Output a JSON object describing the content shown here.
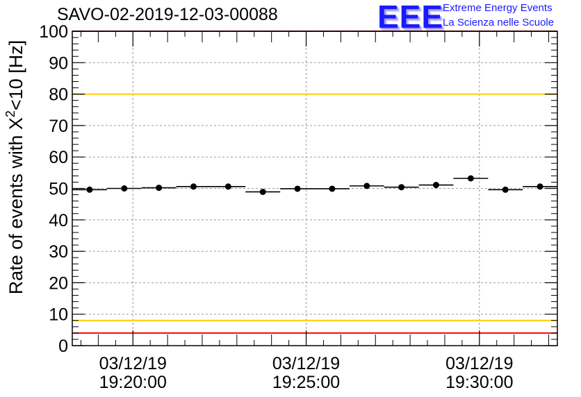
{
  "chart_data": {
    "type": "scatter",
    "title": "SAVO-02-2019-12-03-00088",
    "ylabel_prefix": "Rate of events with X",
    "ylabel_sup": "2",
    "ylabel_suffix": "<10 [Hz]",
    "xlabel": "",
    "ylim": [
      0,
      100
    ],
    "yticks": [
      "0",
      "10",
      "20",
      "30",
      "40",
      "50",
      "60",
      "70",
      "80",
      "90",
      "100"
    ],
    "xticks": [
      {
        "t": 0.0,
        "date": "03/12/19",
        "time": "19:20:00"
      },
      {
        "t": 5.0,
        "date": "03/12/19",
        "time": "19:25:00"
      },
      {
        "t": 10.0,
        "date": "03/12/19",
        "time": "19:30:00"
      }
    ],
    "xlim_minutes_from_1920": [
      -1.75,
      12.25
    ],
    "x_minutes_from_1920": [
      -1.25,
      -0.25,
      0.75,
      1.75,
      2.75,
      3.75,
      4.75,
      5.75,
      6.75,
      7.75,
      8.75,
      9.75,
      10.75,
      11.75
    ],
    "y": [
      49.6,
      50.0,
      50.2,
      50.6,
      50.6,
      48.9,
      49.9,
      49.9,
      50.8,
      50.4,
      51.1,
      53.2,
      49.6,
      50.6
    ],
    "bin_halfwidth_minutes": 0.5,
    "reference_lines": [
      {
        "y": 100,
        "color": "#ff0000"
      },
      {
        "y": 80,
        "color": "#ffcc00"
      },
      {
        "y": 8,
        "color": "#ffcc00"
      },
      {
        "y": 4,
        "color": "#ff0000"
      }
    ],
    "grid": true
  },
  "logo": {
    "text": "EEE",
    "line1": "Extreme Energy Events",
    "line2": "La Scienza nelle Scuole",
    "color": "#1a1aff"
  }
}
